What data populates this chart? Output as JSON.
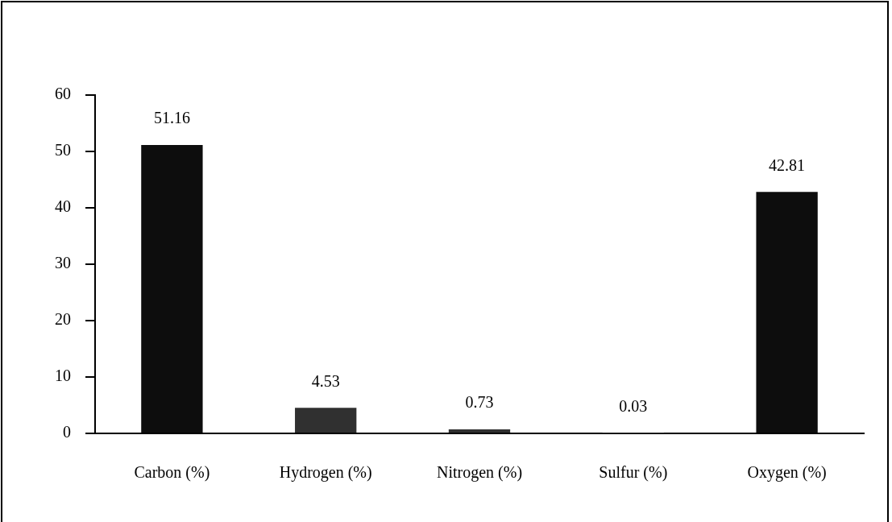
{
  "chart_data": {
    "type": "bar",
    "categories": [
      "Carbon (%)",
      "Hydrogen (%)",
      "Nitrogen (%)",
      "Sulfur (%)",
      "Oxygen (%)"
    ],
    "values": [
      51.16,
      4.53,
      0.73,
      0.03,
      42.81
    ],
    "colors": [
      "#0d0d0d",
      "#303030",
      "#303030",
      "#303030",
      "#0d0d0d"
    ],
    "ylim": [
      0,
      60
    ],
    "yticks": [
      0,
      10,
      20,
      30,
      40,
      50,
      60
    ],
    "grid": false,
    "legend": false,
    "data_labels": true
  }
}
